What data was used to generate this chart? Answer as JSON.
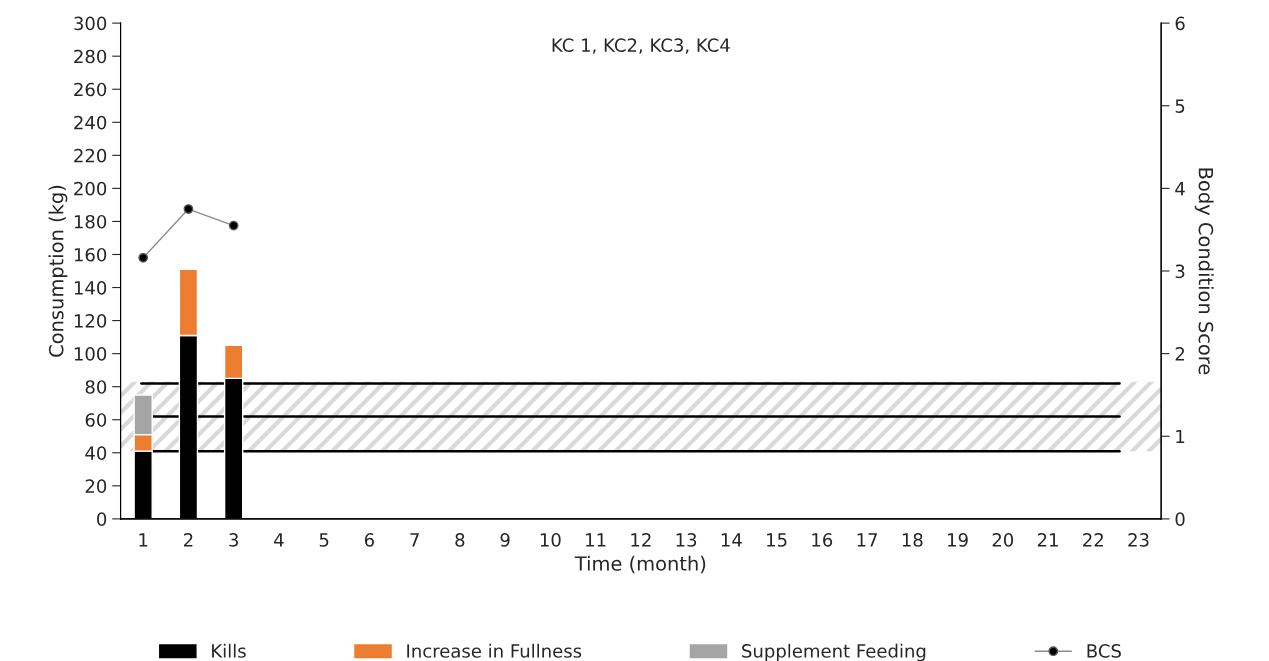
{
  "chart_data": {
    "type": "bar",
    "title": "KC 1, KC2, KC3, KC4",
    "xlabel": "Time (month)",
    "ylabel": "Consumption (kg)",
    "y2label": "Body Condition Score",
    "categories": [
      "1",
      "2",
      "3",
      "4",
      "5",
      "6",
      "7",
      "8",
      "9",
      "10",
      "11",
      "12",
      "13",
      "14",
      "15",
      "16",
      "17",
      "18",
      "19",
      "20",
      "21",
      "22",
      "23"
    ],
    "stacked": true,
    "series": [
      {
        "name": "Kills",
        "color": "#000000",
        "values": [
          41,
          111,
          85,
          null,
          null,
          null,
          null,
          null,
          null,
          null,
          null,
          null,
          null,
          null,
          null,
          null,
          null,
          null,
          null,
          null,
          null,
          null,
          null
        ]
      },
      {
        "name": "Increase in Fullness",
        "color": "#ed7d31",
        "values": [
          10,
          40,
          20,
          null,
          null,
          null,
          null,
          null,
          null,
          null,
          null,
          null,
          null,
          null,
          null,
          null,
          null,
          null,
          null,
          null,
          null,
          null,
          null
        ]
      },
      {
        "name": "Supplement Feeding",
        "color": "#a5a5a5",
        "values": [
          24,
          null,
          null,
          null,
          null,
          null,
          null,
          null,
          null,
          null,
          null,
          null,
          null,
          null,
          null,
          null,
          null,
          null,
          null,
          null,
          null,
          null,
          null
        ]
      },
      {
        "name": "BCS",
        "type": "line",
        "axis": "y2",
        "color": "#000000",
        "marker": "circle",
        "values": [
          3.16,
          3.75,
          3.55,
          null,
          null,
          null,
          null,
          null,
          null,
          null,
          null,
          null,
          null,
          null,
          null,
          null,
          null,
          null,
          null,
          null,
          null,
          null,
          null
        ]
      }
    ],
    "ylim": [
      0,
      300
    ],
    "yticks": [
      0,
      20,
      40,
      60,
      80,
      100,
      120,
      140,
      160,
      180,
      200,
      220,
      240,
      260,
      280,
      300
    ],
    "y2lim": [
      0,
      6
    ],
    "y2ticks": [
      0,
      1,
      2,
      3,
      4,
      5,
      6
    ],
    "ref_lines": [
      {
        "axis": "y",
        "value": 82,
        "color": "#000000"
      },
      {
        "axis": "y",
        "value": 62,
        "color": "#000000"
      },
      {
        "axis": "y",
        "value": 41,
        "color": "#000000"
      }
    ],
    "bands": [
      {
        "axis": "y",
        "from": 41,
        "to": 83,
        "color": "#d9d9d9"
      }
    ],
    "grid": false,
    "legend": "bottom"
  }
}
